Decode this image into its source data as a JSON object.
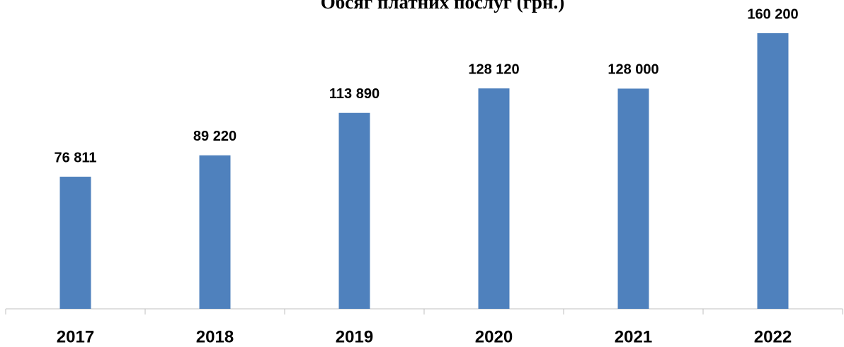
{
  "chart_data": {
    "type": "bar",
    "title": "Обсяг платних послуг (грн.)",
    "categories": [
      "2017",
      "2018",
      "2019",
      "2020",
      "2021",
      "2022"
    ],
    "values": [
      76811,
      89220,
      113890,
      128120,
      128000,
      160200
    ],
    "value_labels": [
      "76 811",
      "89 220",
      "113 890",
      "128 120",
      "128 000",
      "160 200"
    ],
    "color": "#4f81bd"
  }
}
